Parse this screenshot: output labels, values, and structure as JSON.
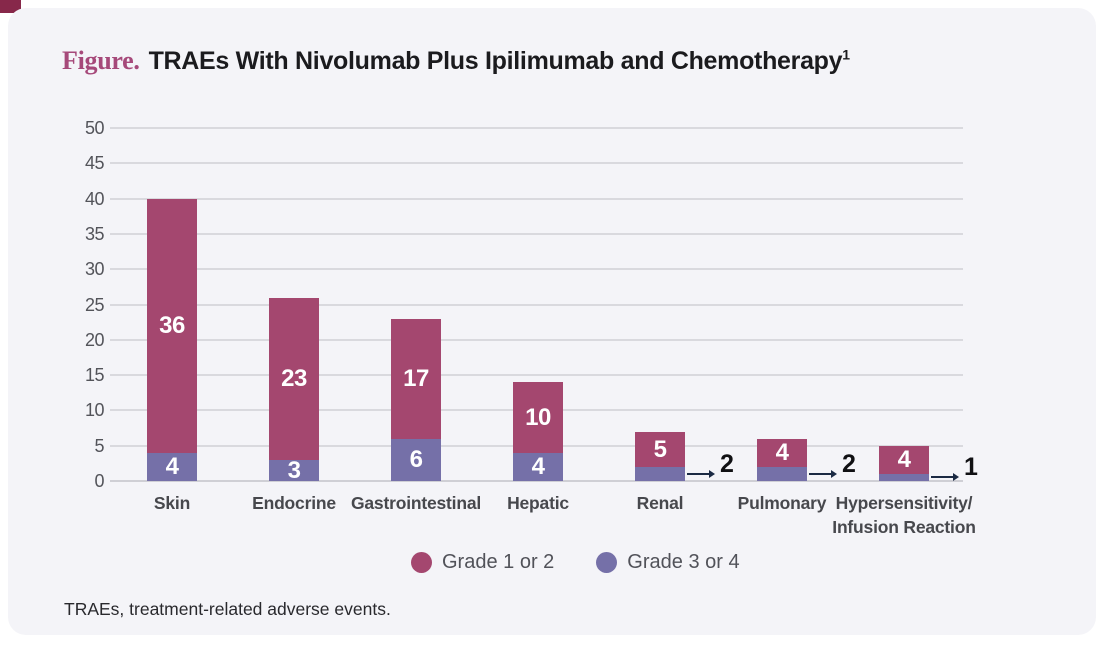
{
  "title": {
    "prefix": "Figure.",
    "text": "TRAEs With Nivolumab Plus Ipilimumab and Chemotherapy",
    "superscript": "1"
  },
  "footnote": "TRAEs, treatment-related adverse events.",
  "legend": [
    {
      "label": "Grade 1 or 2",
      "color": "#a4476f"
    },
    {
      "label": "Grade 3 or 4",
      "color": "#7570a8"
    }
  ],
  "colors": {
    "grade12": "#a4476f",
    "grade34": "#7570a8",
    "accent_corner": "#87284a",
    "card_bg": "#f4f4f8",
    "grid": "#d9d9de",
    "callout_line": "#1b2a44",
    "tick_text": "#53545a",
    "category_text": "#47484d",
    "legend_text": "#515259",
    "title_prefix": "#a6497a"
  },
  "chart_data": {
    "type": "bar",
    "stacked": true,
    "title": "TRAEs With Nivolumab Plus Ipilimumab and Chemotherapy",
    "categories": [
      "Skin",
      "Endocrine",
      "Gastrointestinal",
      "Hepatic",
      "Renal",
      "Pulmonary",
      "Hypersensitivity/\nInfusion Reaction"
    ],
    "series": [
      {
        "name": "Grade 1 or 2",
        "color": "#a4476f",
        "values": [
          36,
          23,
          17,
          10,
          5,
          4,
          4
        ]
      },
      {
        "name": "Grade 3 or 4",
        "color": "#7570a8",
        "values": [
          4,
          3,
          6,
          4,
          2,
          2,
          1
        ],
        "label_outside": [
          false,
          false,
          false,
          false,
          true,
          true,
          true
        ]
      }
    ],
    "totals": [
      40,
      26,
      23,
      14,
      7,
      6,
      5
    ],
    "ylim": [
      0,
      50
    ],
    "yticks": [
      0,
      5,
      10,
      15,
      20,
      25,
      30,
      35,
      40,
      45,
      50
    ],
    "grid": "horizontal",
    "legend_position": "bottom"
  }
}
